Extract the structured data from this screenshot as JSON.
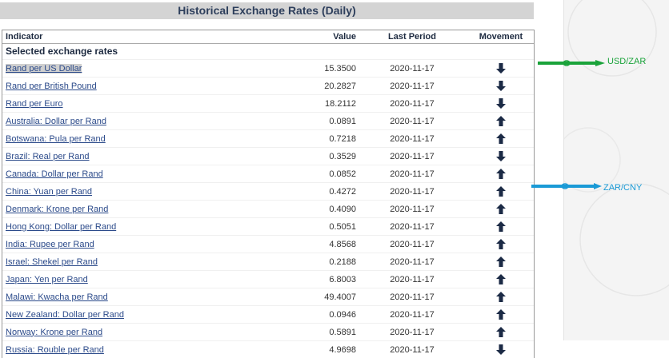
{
  "title": "Historical Exchange Rates (Daily)",
  "headers": {
    "indicator": "Indicator",
    "value": "Value",
    "period": "Last Period",
    "movement": "Movement"
  },
  "section": "Selected exchange rates",
  "rows": [
    {
      "name": "Rand per US Dollar",
      "value": "15.3500",
      "period": "2020-11-17",
      "movement": "down"
    },
    {
      "name": "Rand per British Pound",
      "value": "20.2827",
      "period": "2020-11-17",
      "movement": "down"
    },
    {
      "name": "Rand per Euro",
      "value": "18.2112",
      "period": "2020-11-17",
      "movement": "down"
    },
    {
      "name": "Australia: Dollar per Rand",
      "value": "0.0891",
      "period": "2020-11-17",
      "movement": "up"
    },
    {
      "name": "Botswana: Pula per Rand",
      "value": "0.7218",
      "period": "2020-11-17",
      "movement": "up"
    },
    {
      "name": "Brazil: Real per Rand",
      "value": "0.3529",
      "period": "2020-11-17",
      "movement": "down"
    },
    {
      "name": "Canada: Dollar per Rand",
      "value": "0.0852",
      "period": "2020-11-17",
      "movement": "up"
    },
    {
      "name": "China: Yuan per Rand",
      "value": "0.4272",
      "period": "2020-11-17",
      "movement": "up"
    },
    {
      "name": "Denmark: Krone per Rand",
      "value": "0.4090",
      "period": "2020-11-17",
      "movement": "up"
    },
    {
      "name": "Hong Kong: Dollar per Rand",
      "value": "0.5051",
      "period": "2020-11-17",
      "movement": "up"
    },
    {
      "name": "India: Rupee per Rand",
      "value": "4.8568",
      "period": "2020-11-17",
      "movement": "up"
    },
    {
      "name": "Israel: Shekel per Rand",
      "value": "0.2188",
      "period": "2020-11-17",
      "movement": "up"
    },
    {
      "name": "Japan: Yen per Rand",
      "value": "6.8003",
      "period": "2020-11-17",
      "movement": "up"
    },
    {
      "name": "Malawi: Kwacha per Rand",
      "value": "49.4007",
      "period": "2020-11-17",
      "movement": "up"
    },
    {
      "name": "New Zealand: Dollar per Rand",
      "value": "0.0946",
      "period": "2020-11-17",
      "movement": "up"
    },
    {
      "name": "Norway: Krone per Rand",
      "value": "0.5891",
      "period": "2020-11-17",
      "movement": "up"
    },
    {
      "name": "Russia: Rouble per Rand",
      "value": "4.9698",
      "period": "2020-11-17",
      "movement": "down"
    }
  ],
  "annotations": {
    "usd": "USD/ZAR",
    "cny": "ZAR/CNY",
    "usd_color": "#1aa33a",
    "cny_color": "#1a9ad6"
  },
  "icons": {
    "up": "arrow-up-icon",
    "down": "arrow-down-icon"
  }
}
